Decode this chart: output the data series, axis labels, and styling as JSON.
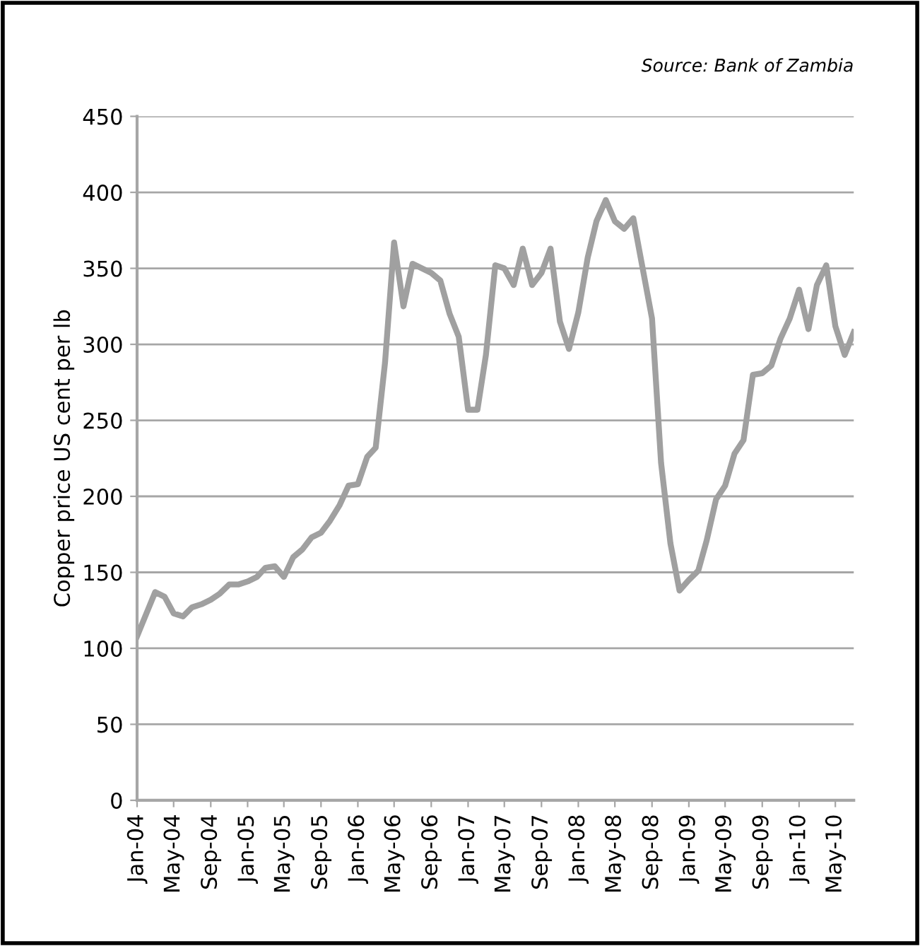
{
  "chart_data": {
    "type": "line",
    "ylabel": "Copper price US cent per lb",
    "annotations": [
      "Source: Bank of Zambia"
    ],
    "x": [
      "2004-01",
      "2004-02",
      "2004-03",
      "2004-04",
      "2004-05",
      "2004-06",
      "2004-07",
      "2004-08",
      "2004-09",
      "2004-10",
      "2004-11",
      "2004-12",
      "2005-01",
      "2005-02",
      "2005-03",
      "2005-04",
      "2005-05",
      "2005-06",
      "2005-07",
      "2005-08",
      "2005-09",
      "2005-10",
      "2005-11",
      "2005-12",
      "2006-01",
      "2006-02",
      "2006-03",
      "2006-04",
      "2006-05",
      "2006-06",
      "2006-07",
      "2006-08",
      "2006-09",
      "2006-10",
      "2006-11",
      "2006-12",
      "2007-01",
      "2007-02",
      "2007-03",
      "2007-04",
      "2007-05",
      "2007-06",
      "2007-07",
      "2007-08",
      "2007-09",
      "2007-10",
      "2007-11",
      "2007-12",
      "2008-01",
      "2008-02",
      "2008-03",
      "2008-04",
      "2008-05",
      "2008-06",
      "2008-07",
      "2008-08",
      "2008-09",
      "2008-10",
      "2008-11",
      "2008-12",
      "2009-01",
      "2009-02",
      "2009-03",
      "2009-04",
      "2009-05",
      "2009-06",
      "2009-07",
      "2009-08",
      "2009-09",
      "2009-10",
      "2009-11",
      "2009-12",
      "2010-01",
      "2010-02",
      "2010-03",
      "2010-04",
      "2010-05",
      "2010-06",
      "2010-07"
    ],
    "series": [
      {
        "color": "#a0a0a0",
        "values": [
          108,
          123,
          137,
          134,
          123,
          121,
          127,
          129,
          132,
          136,
          142,
          142,
          144,
          147,
          153,
          154,
          147,
          160,
          165,
          173,
          176,
          184,
          194,
          207,
          208,
          226,
          232,
          288,
          367,
          325,
          353,
          350,
          347,
          342,
          320,
          305,
          257,
          257,
          293,
          352,
          350,
          339,
          363,
          339,
          347,
          363,
          315,
          297,
          321,
          357,
          381,
          395,
          381,
          376,
          383,
          350,
          317,
          222,
          169,
          138,
          145,
          151,
          171,
          198,
          207,
          228,
          237,
          280,
          281,
          286,
          304,
          317,
          336,
          310,
          339,
          352,
          312,
          293,
          308
        ]
      }
    ],
    "xlim": [
      "2004-01",
      "2010-07"
    ],
    "xticks": [
      {
        "value": "2004-01",
        "label": "Jan-04"
      },
      {
        "value": "2004-05",
        "label": "May-04"
      },
      {
        "value": "2004-09",
        "label": "Sep-04"
      },
      {
        "value": "2005-01",
        "label": "Jan-05"
      },
      {
        "value": "2005-05",
        "label": "May-05"
      },
      {
        "value": "2005-09",
        "label": "Sep-05"
      },
      {
        "value": "2006-01",
        "label": "Jan-06"
      },
      {
        "value": "2006-05",
        "label": "May-06"
      },
      {
        "value": "2006-09",
        "label": "Sep-06"
      },
      {
        "value": "2007-01",
        "label": "Jan-07"
      },
      {
        "value": "2007-05",
        "label": "May-07"
      },
      {
        "value": "2007-09",
        "label": "Sep-07"
      },
      {
        "value": "2008-01",
        "label": "Jan-08"
      },
      {
        "value": "2008-05",
        "label": "May-08"
      },
      {
        "value": "2008-09",
        "label": "Sep-08"
      },
      {
        "value": "2009-01",
        "label": "Jan-09"
      },
      {
        "value": "2009-05",
        "label": "May-09"
      },
      {
        "value": "2009-09",
        "label": "Sep-09"
      },
      {
        "value": "2010-01",
        "label": "Jan-10"
      },
      {
        "value": "2010-05",
        "label": "May-10"
      }
    ],
    "ylim": [
      0,
      450
    ],
    "yticks": [
      0,
      50,
      100,
      150,
      200,
      250,
      300,
      350,
      400,
      450
    ],
    "grid": "y",
    "legend": false
  }
}
